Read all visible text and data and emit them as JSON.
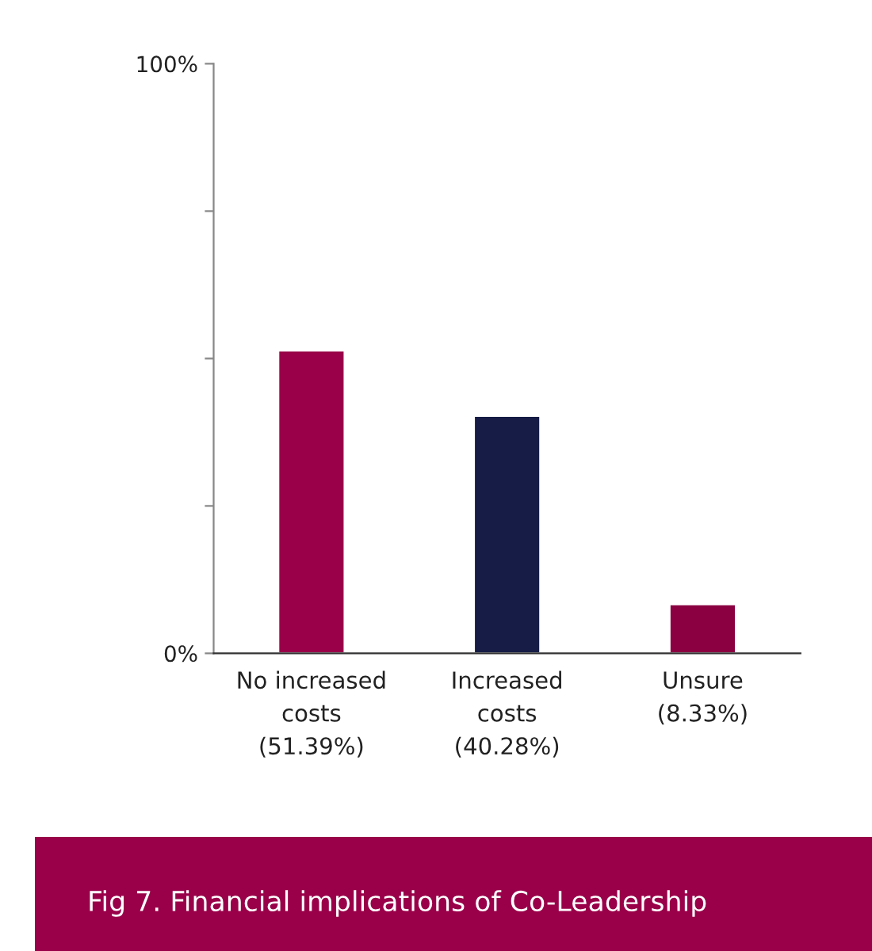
{
  "chart_data": {
    "type": "bar",
    "title": "Fig 7. Financial implications of Co-Leadership",
    "categories": [
      "No increased\ncosts\n(51.39%)",
      "Increased\ncosts\n(40.28%)",
      "Unsure\n(8.33%)"
    ],
    "values": [
      51.39,
      40.28,
      8.33
    ],
    "colors": [
      "#990049",
      "#161c45",
      "#8a0040"
    ],
    "ylim": [
      0,
      100
    ],
    "yticks": [
      {
        "value": 0,
        "label": "0%"
      },
      {
        "value": 25,
        "label": null
      },
      {
        "value": 50,
        "label": null
      },
      {
        "value": 75,
        "label": null
      },
      {
        "value": 100,
        "label": "100%"
      }
    ],
    "grid": false
  }
}
